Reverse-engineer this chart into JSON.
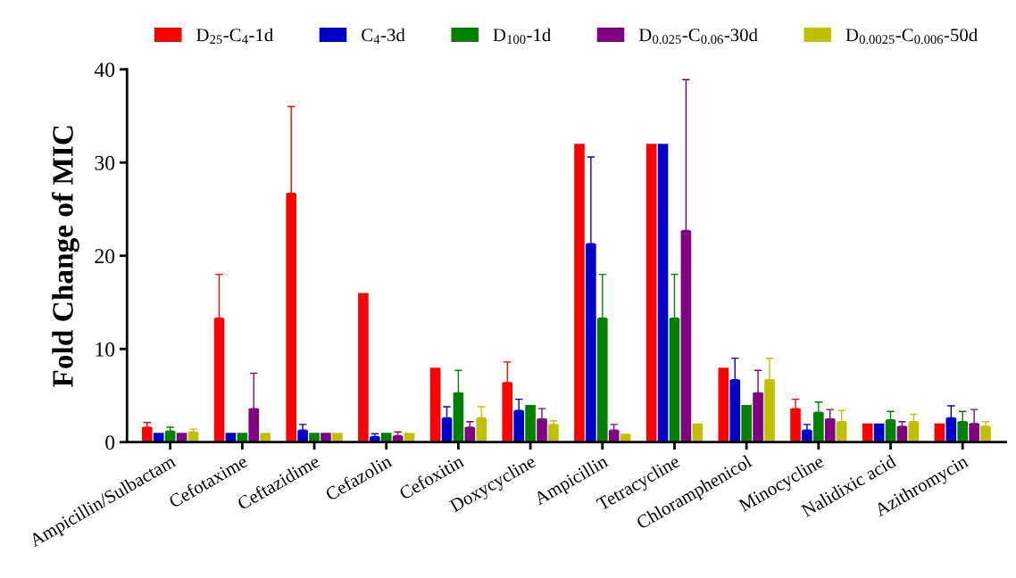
{
  "chart_data": {
    "type": "bar",
    "ylabel": "Fold Change of MIC",
    "categories": [
      "Ampicillin/Sulbactam",
      "Cefotaxime",
      "Ceftazidime",
      "Cefazolin",
      "Cefoxitin",
      "Doxycycline",
      "Ampicillin",
      "Tetracycline",
      "Chloramphenicol",
      "Minocycline",
      "Nalidixic acid",
      "Azithromycin"
    ],
    "ylim": [
      0,
      40
    ],
    "yticks": [
      0,
      10,
      20,
      30,
      40
    ],
    "grid": false,
    "legend": "top",
    "series": [
      {
        "name": "D$_{25}$-C$_{4}$-1d",
        "color": "#ff0000",
        "values": [
          1.6,
          13.3,
          26.7,
          16,
          8,
          6.4,
          32,
          32,
          8,
          3.6,
          2,
          2
        ],
        "errors": [
          [
            1.6,
            2.1
          ],
          [
            13.3,
            18
          ],
          [
            26.7,
            36
          ],
          null,
          null,
          [
            6.4,
            8.6
          ],
          null,
          null,
          null,
          [
            3.6,
            4.6
          ],
          null,
          null
        ]
      },
      {
        "name": "C$_{4}$-3d",
        "color": "#0000c8",
        "values": [
          1,
          1,
          1.3,
          0.6,
          2.6,
          3.4,
          21.3,
          32,
          6.7,
          1.3,
          2,
          2.6
        ],
        "errors": [
          null,
          null,
          [
            1.3,
            1.9
          ],
          [
            0.6,
            0.9
          ],
          [
            2.6,
            3.8
          ],
          [
            3.4,
            4.6
          ],
          [
            21.3,
            30.6
          ],
          null,
          [
            6.7,
            9
          ],
          [
            1.3,
            1.9
          ],
          null,
          [
            2.6,
            3.9
          ]
        ]
      },
      {
        "name": "D$_{100}$-1d",
        "color": "#008000",
        "values": [
          1.2,
          1,
          1,
          1,
          5.3,
          4,
          13.3,
          13.3,
          4,
          3.2,
          2.4,
          2.2
        ],
        "errors": [
          [
            1.2,
            1.6
          ],
          null,
          null,
          null,
          [
            5.3,
            7.7
          ],
          null,
          [
            13.3,
            18
          ],
          [
            13.3,
            18
          ],
          null,
          [
            3.2,
            4.3
          ],
          [
            2.4,
            3.3
          ],
          [
            2.2,
            3.3
          ]
        ]
      },
      {
        "name": "D$_{0.025}$-C$_{0.06}$-30d",
        "color": "#800080",
        "values": [
          1,
          3.6,
          1,
          0.7,
          1.6,
          2.5,
          1.3,
          22.7,
          5.3,
          2.5,
          1.7,
          2
        ],
        "errors": [
          null,
          [
            3.6,
            7.4
          ],
          null,
          [
            0.7,
            1.1
          ],
          [
            1.6,
            2.2
          ],
          [
            2.5,
            3.6
          ],
          [
            1.3,
            1.9
          ],
          [
            22.7,
            38.9
          ],
          [
            5.3,
            7.7
          ],
          [
            2.5,
            3.5
          ],
          [
            1.7,
            2.2
          ],
          [
            2,
            3.5
          ]
        ]
      },
      {
        "name": "D$_{0.0025}$-C$_{0.006}$-50d",
        "color": "#c0c000",
        "values": [
          1.1,
          1,
          1,
          1,
          2.6,
          1.9,
          0.9,
          2,
          6.7,
          2.2,
          2.2,
          1.7
        ],
        "errors": [
          [
            1.1,
            1.4
          ],
          null,
          null,
          null,
          [
            2.6,
            3.8
          ],
          [
            1.9,
            2.3
          ],
          null,
          null,
          [
            6.7,
            9
          ],
          [
            2.2,
            3.4
          ],
          [
            2.2,
            3
          ],
          [
            1.7,
            2.2
          ]
        ]
      }
    ]
  }
}
